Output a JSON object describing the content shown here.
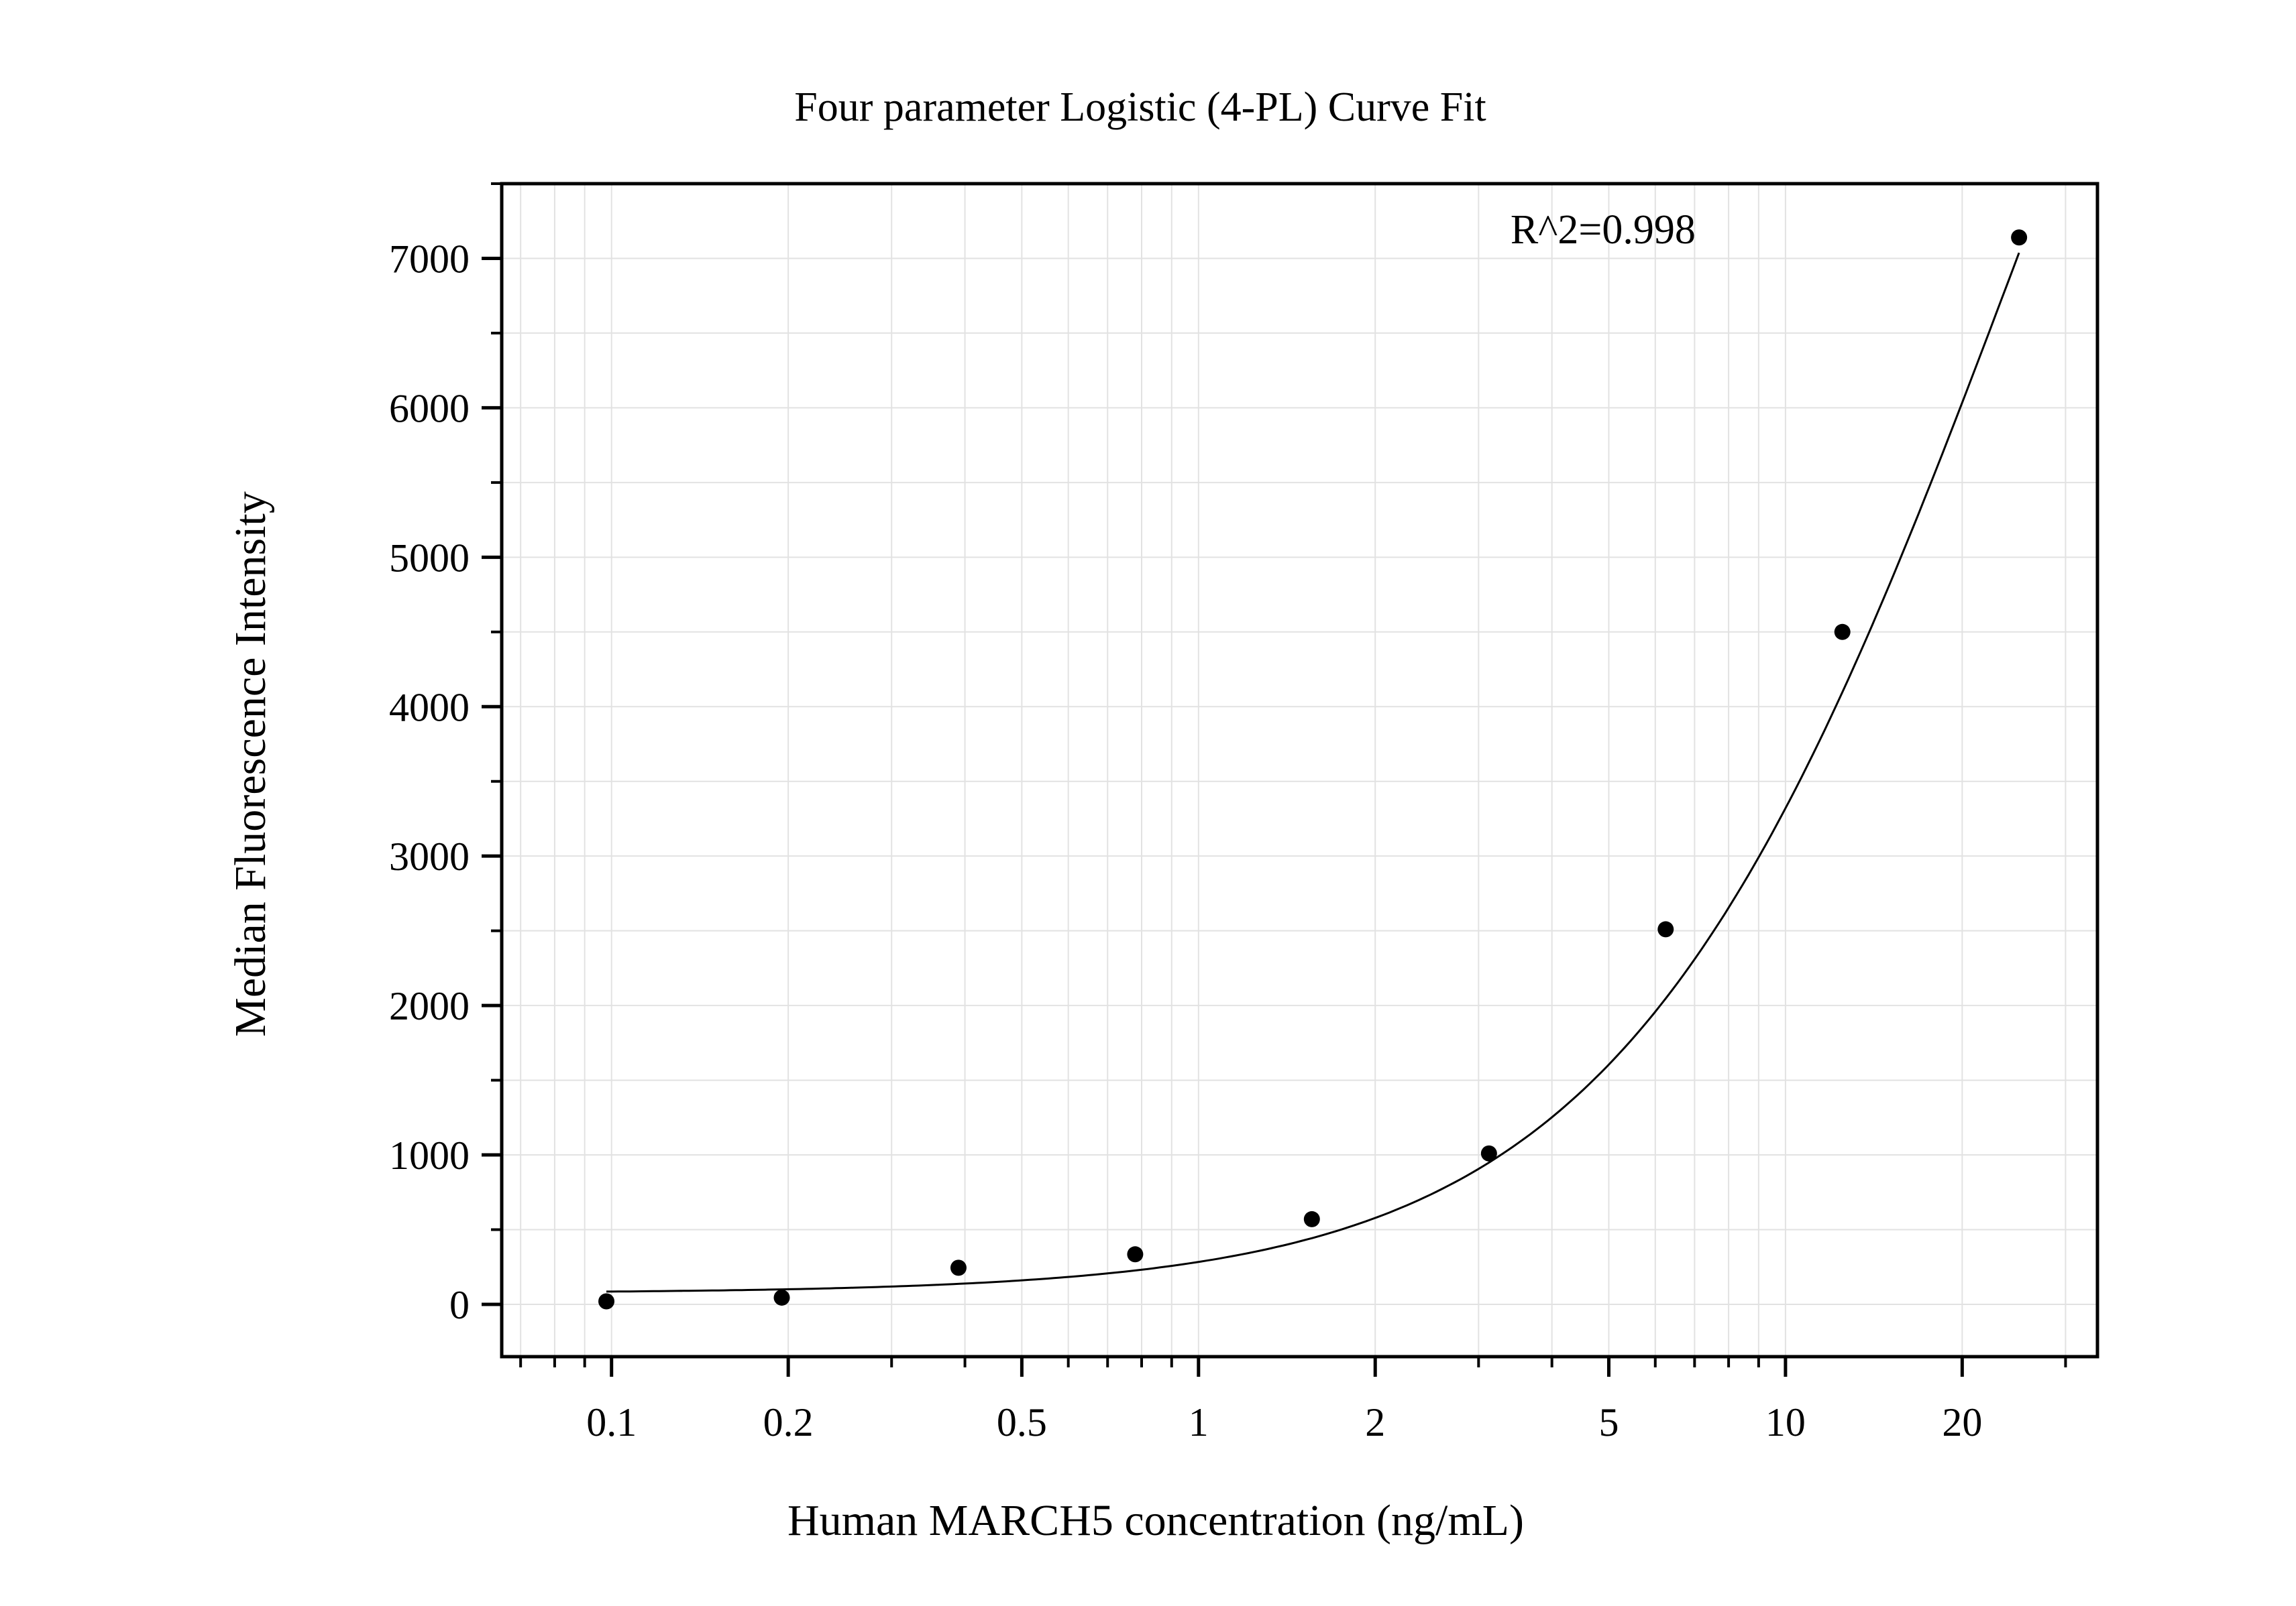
{
  "chart_data": {
    "type": "scatter",
    "title": "Four parameter Logistic (4-PL) Curve Fit",
    "xlabel": "Human MARCH5 concentration (ng/mL)",
    "ylabel": "Median Fluorescence Intensity",
    "x_scale": "log",
    "xlim": [
      0.065,
      34
    ],
    "ylim": [
      -350,
      7500
    ],
    "x_ticks": [
      {
        "value": 0.1,
        "label": "0.1"
      },
      {
        "value": 0.2,
        "label": "0.2"
      },
      {
        "value": 0.5,
        "label": "0.5"
      },
      {
        "value": 1,
        "label": "1"
      },
      {
        "value": 2,
        "label": "2"
      },
      {
        "value": 5,
        "label": "5"
      },
      {
        "value": 10,
        "label": "10"
      },
      {
        "value": 20,
        "label": "20"
      }
    ],
    "y_ticks": [
      {
        "value": 0,
        "label": "0"
      },
      {
        "value": 1000,
        "label": "1000"
      },
      {
        "value": 2000,
        "label": "2000"
      },
      {
        "value": 3000,
        "label": "3000"
      },
      {
        "value": 4000,
        "label": "4000"
      },
      {
        "value": 5000,
        "label": "5000"
      },
      {
        "value": 6000,
        "label": "6000"
      },
      {
        "value": 7000,
        "label": "7000"
      }
    ],
    "grid": true,
    "series": [
      {
        "kind": "points",
        "x": [
          0.098,
          0.195,
          0.39,
          0.78,
          1.56,
          3.125,
          6.25,
          12.5,
          25
        ],
        "y": [
          20,
          45,
          245,
          335,
          570,
          1010,
          2510,
          4500,
          7140
        ]
      },
      {
        "kind": "fit-curve",
        "model": "4PL",
        "A": 75,
        "B": 1.3,
        "C": 25,
        "D": 14000
      }
    ],
    "annotations": [
      {
        "text": "R^2=0.998",
        "x": 3.4,
        "y": 7100
      }
    ]
  }
}
